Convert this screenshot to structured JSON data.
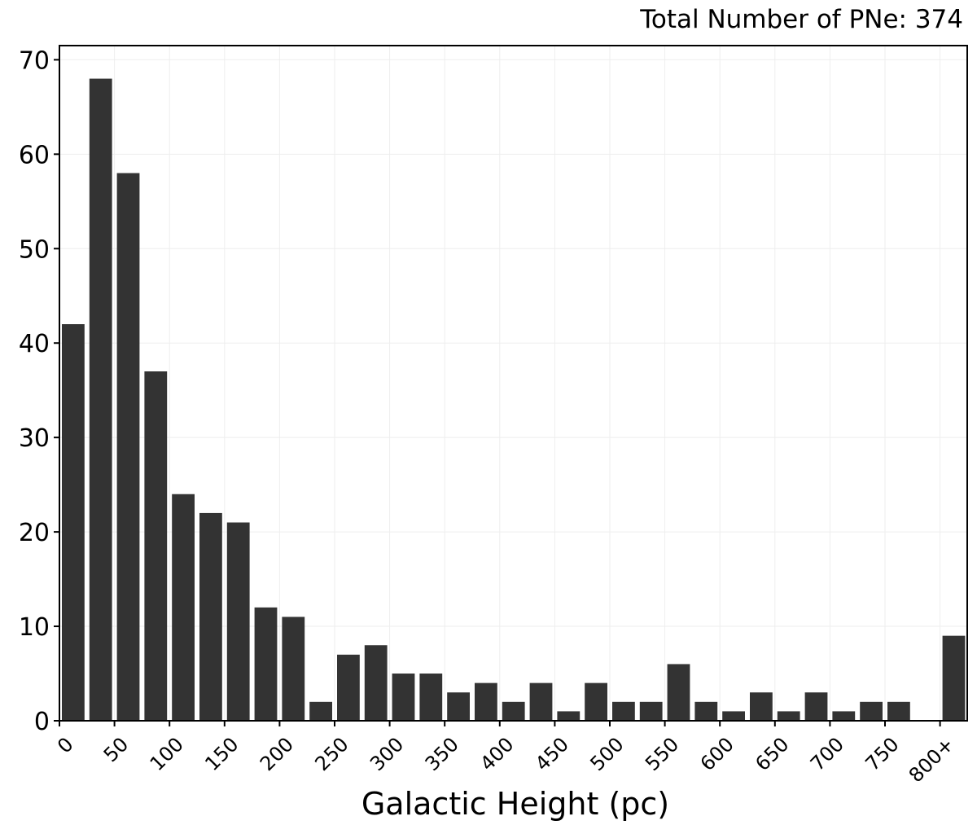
{
  "chart_data": {
    "type": "bar",
    "title": "",
    "annotation": "Total Number of PNe: 374",
    "xlabel": "Galactic Height (pc)",
    "ylabel": "",
    "categories": [
      "0-25",
      "25-50",
      "50-75",
      "75-100",
      "100-125",
      "125-150",
      "150-175",
      "175-200",
      "200-225",
      "225-250",
      "250-275",
      "275-300",
      "300-325",
      "325-350",
      "350-375",
      "375-400",
      "400-425",
      "425-450",
      "450-475",
      "475-500",
      "500-525",
      "525-550",
      "550-575",
      "575-600",
      "600-625",
      "625-650",
      "650-675",
      "675-700",
      "700-725",
      "725-750",
      "750-775",
      "775-800",
      "800+"
    ],
    "values": [
      42,
      68,
      58,
      37,
      24,
      22,
      21,
      12,
      11,
      2,
      7,
      8,
      5,
      5,
      3,
      4,
      2,
      4,
      1,
      4,
      2,
      2,
      6,
      2,
      1,
      3,
      1,
      3,
      1,
      2,
      2,
      0,
      9
    ],
    "x_tick_labels": [
      "0",
      "50",
      "100",
      "150",
      "200",
      "250",
      "300",
      "350",
      "400",
      "450",
      "500",
      "550",
      "600",
      "650",
      "700",
      "750",
      "800+"
    ],
    "y_ticks": [
      0,
      10,
      20,
      30,
      40,
      50,
      60,
      70
    ],
    "ylim": [
      0,
      71.5
    ],
    "grid": true,
    "colors": {
      "bar": "#333333",
      "grid": "#eeeeee",
      "axis": "#000000"
    }
  }
}
